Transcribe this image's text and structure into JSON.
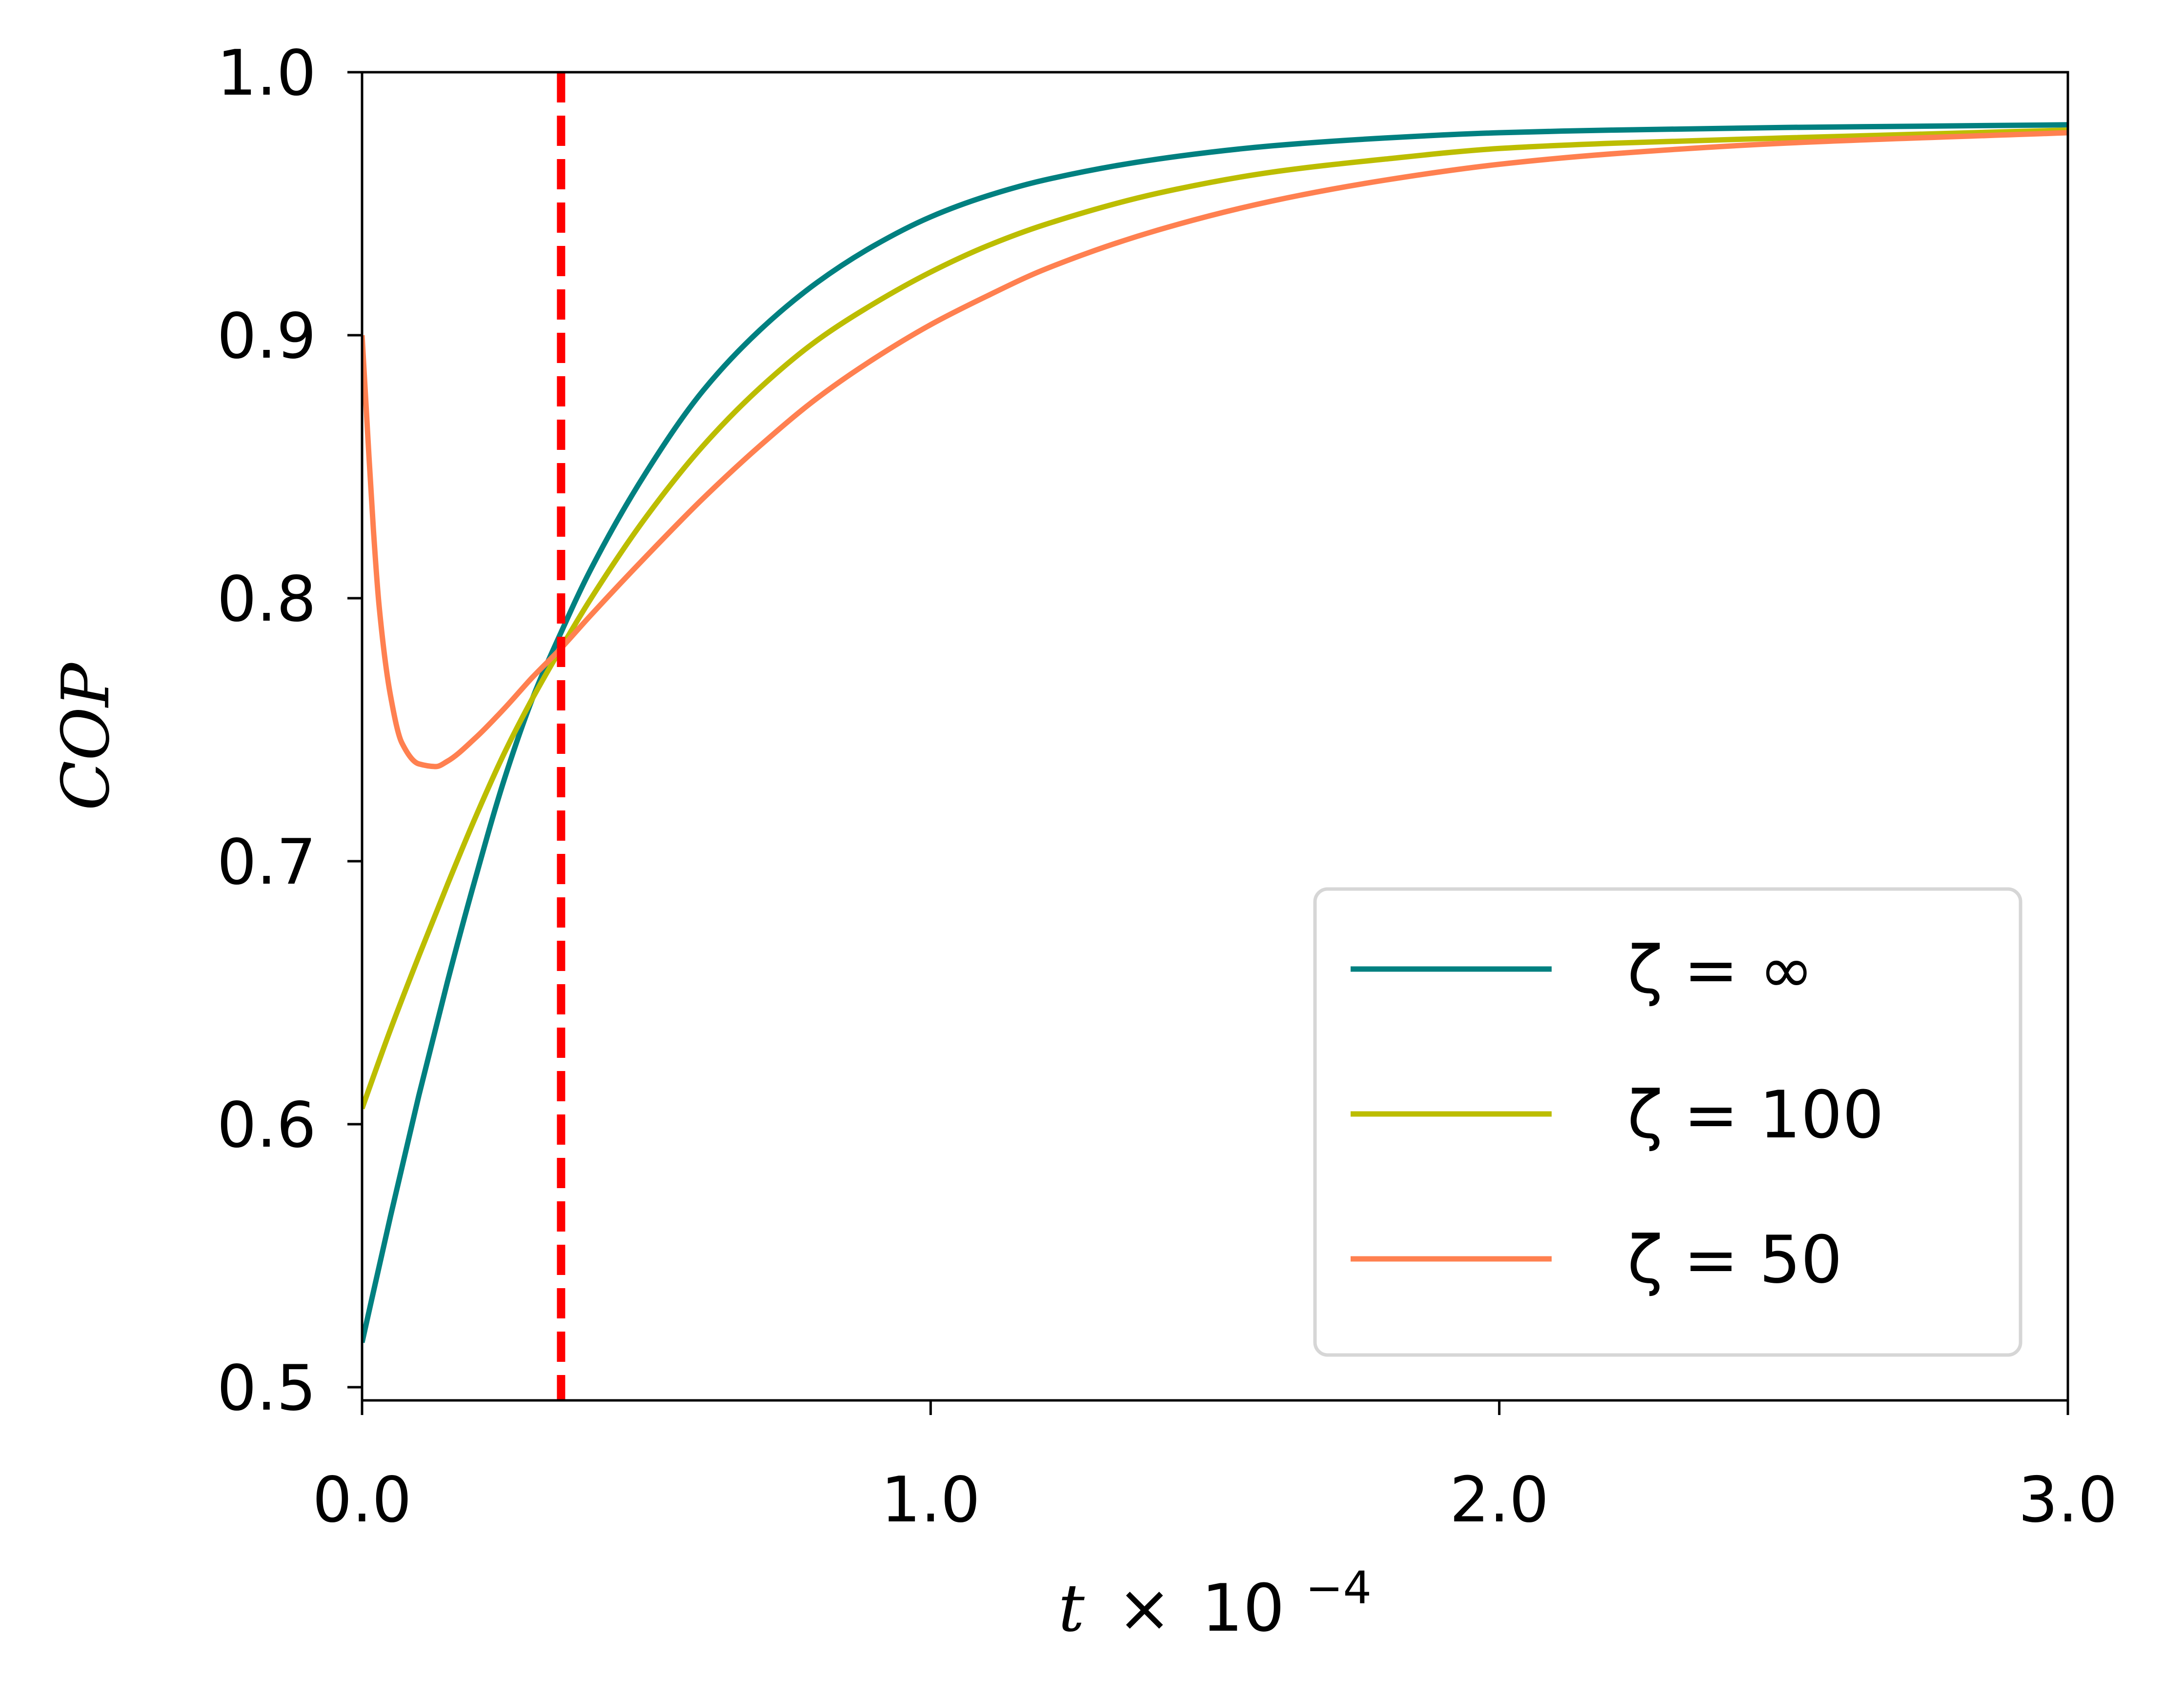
{
  "chart_data": {
    "type": "line",
    "xlabel_var": "t",
    "xlabel_op": "×",
    "xlabel_base": "10",
    "xlabel_exp": "−4",
    "ylabel": "COP",
    "xlim": [
      0.0,
      3.0
    ],
    "ylim": [
      0.495,
      1.0
    ],
    "x_ticks": [
      {
        "value": 0.0,
        "label": "0.0"
      },
      {
        "value": 1.0,
        "label": "1.0"
      },
      {
        "value": 2.0,
        "label": "2.0"
      },
      {
        "value": 3.0,
        "label": "3.0"
      }
    ],
    "y_ticks": [
      {
        "value": 0.5,
        "label": "0.5"
      },
      {
        "value": 0.6,
        "label": "0.6"
      },
      {
        "value": 0.7,
        "label": "0.7"
      },
      {
        "value": 0.8,
        "label": "0.8"
      },
      {
        "value": 0.9,
        "label": "0.9"
      },
      {
        "value": 1.0,
        "label": "1.0"
      }
    ],
    "grid": false,
    "legend_position": "lower-right",
    "vline": {
      "x": 0.35,
      "color": "#ff0000",
      "style": "dashed"
    },
    "series": [
      {
        "name": "ζ = ∞",
        "color": "#008080",
        "x": [
          0.0,
          0.05,
          0.1,
          0.15,
          0.2,
          0.25,
          0.3,
          0.35,
          0.4,
          0.5,
          0.6,
          0.7,
          0.8,
          0.9,
          1.0,
          1.1,
          1.2,
          1.4,
          1.6,
          1.8,
          2.0,
          2.2,
          2.5,
          3.0
        ],
        "y": [
          0.517,
          0.565,
          0.611,
          0.654,
          0.694,
          0.731,
          0.762,
          0.787,
          0.81,
          0.848,
          0.879,
          0.902,
          0.92,
          0.934,
          0.945,
          0.953,
          0.959,
          0.967,
          0.972,
          0.975,
          0.977,
          0.978,
          0.979,
          0.98
        ]
      },
      {
        "name": "ζ = 100",
        "color": "#bcbd00",
        "x": [
          0.0,
          0.05,
          0.1,
          0.15,
          0.2,
          0.25,
          0.3,
          0.35,
          0.4,
          0.5,
          0.6,
          0.7,
          0.8,
          0.9,
          1.0,
          1.1,
          1.2,
          1.4,
          1.6,
          1.8,
          2.0,
          2.2,
          2.5,
          3.0
        ],
        "y": [
          0.606,
          0.636,
          0.664,
          0.691,
          0.717,
          0.741,
          0.762,
          0.781,
          0.799,
          0.831,
          0.858,
          0.88,
          0.898,
          0.912,
          0.924,
          0.934,
          0.942,
          0.954,
          0.962,
          0.967,
          0.971,
          0.973,
          0.975,
          0.978
        ]
      },
      {
        "name": "ζ = 50",
        "color": "#ff8050",
        "x": [
          0.0,
          0.01,
          0.02,
          0.03,
          0.05,
          0.07,
          0.1,
          0.13,
          0.15,
          0.2,
          0.25,
          0.3,
          0.35,
          0.4,
          0.5,
          0.6,
          0.7,
          0.8,
          0.9,
          1.0,
          1.1,
          1.2,
          1.4,
          1.6,
          1.8,
          2.0,
          2.2,
          2.5,
          3.0
        ],
        "y": [
          0.9,
          0.862,
          0.826,
          0.797,
          0.763,
          0.745,
          0.737,
          0.736,
          0.738,
          0.747,
          0.758,
          0.77,
          0.781,
          0.793,
          0.816,
          0.838,
          0.858,
          0.876,
          0.891,
          0.904,
          0.915,
          0.925,
          0.94,
          0.951,
          0.959,
          0.965,
          0.969,
          0.973,
          0.977
        ]
      }
    ]
  }
}
